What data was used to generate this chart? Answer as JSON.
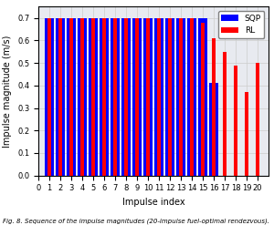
{
  "rl_values": [
    0.7,
    0.7,
    0.7,
    0.7,
    0.7,
    0.7,
    0.7,
    0.7,
    0.7,
    0.7,
    0.7,
    0.7,
    0.7,
    0.7,
    0.68,
    0.61,
    0.55,
    0.49,
    0.37,
    0.5
  ],
  "sqp_values": [
    0.7,
    0.7,
    0.7,
    0.7,
    0.7,
    0.7,
    0.7,
    0.7,
    0.7,
    0.7,
    0.7,
    0.7,
    0.7,
    0.7,
    0.7,
    0.41,
    0.0,
    0.0,
    0.0,
    0.0
  ],
  "rl_color": "#FF0000",
  "sqp_color": "#0000FF",
  "xlabel": "Impulse index",
  "ylabel": "Impulse magnitude (m/s)",
  "ylim": [
    0.0,
    0.75
  ],
  "yticks": [
    0.0,
    0.1,
    0.2,
    0.3,
    0.4,
    0.5,
    0.6,
    0.7
  ],
  "bar_width": 0.8,
  "legend_labels": [
    "RL",
    "SQP"
  ],
  "grid": true,
  "grid_color": "#cccccc",
  "bg_color": "#e8eaf0",
  "caption": "Fig. 8. Sequence of the impulse magnitudes (20-impulse fuel-optimal rendezvous).",
  "tick_fontsize": 6,
  "label_fontsize": 7,
  "legend_fontsize": 6.5
}
